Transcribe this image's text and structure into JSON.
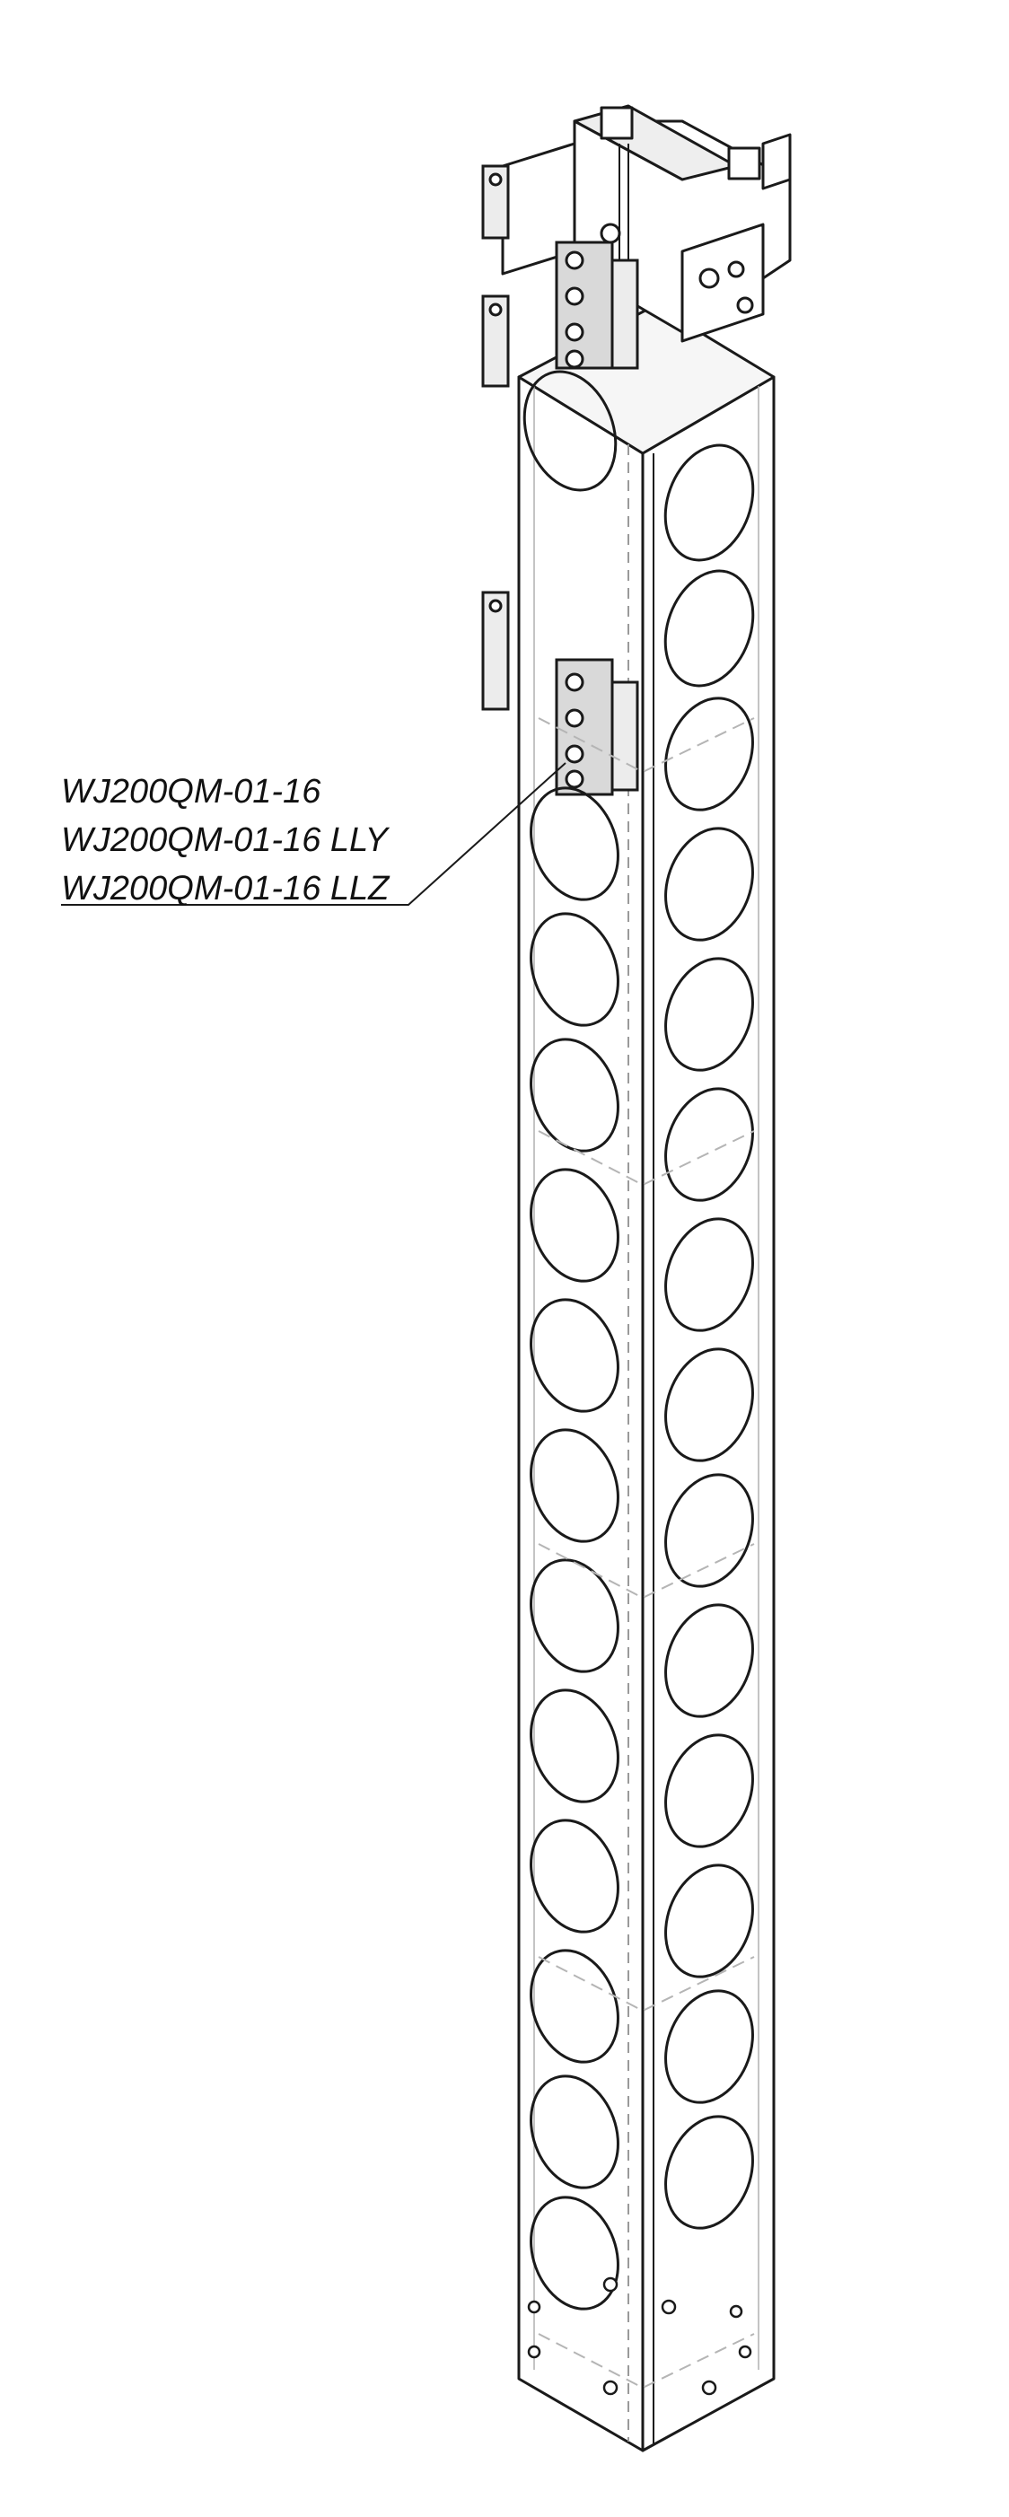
{
  "callout": {
    "labels": [
      "WJ200QM-01-16",
      "WJ200QM-01-16 LLY",
      "WJ200QM-01-16 LLZ"
    ]
  },
  "colors": {
    "line": "#1a1a1a",
    "hidden": "#a8a8a8",
    "background": "#ffffff"
  }
}
